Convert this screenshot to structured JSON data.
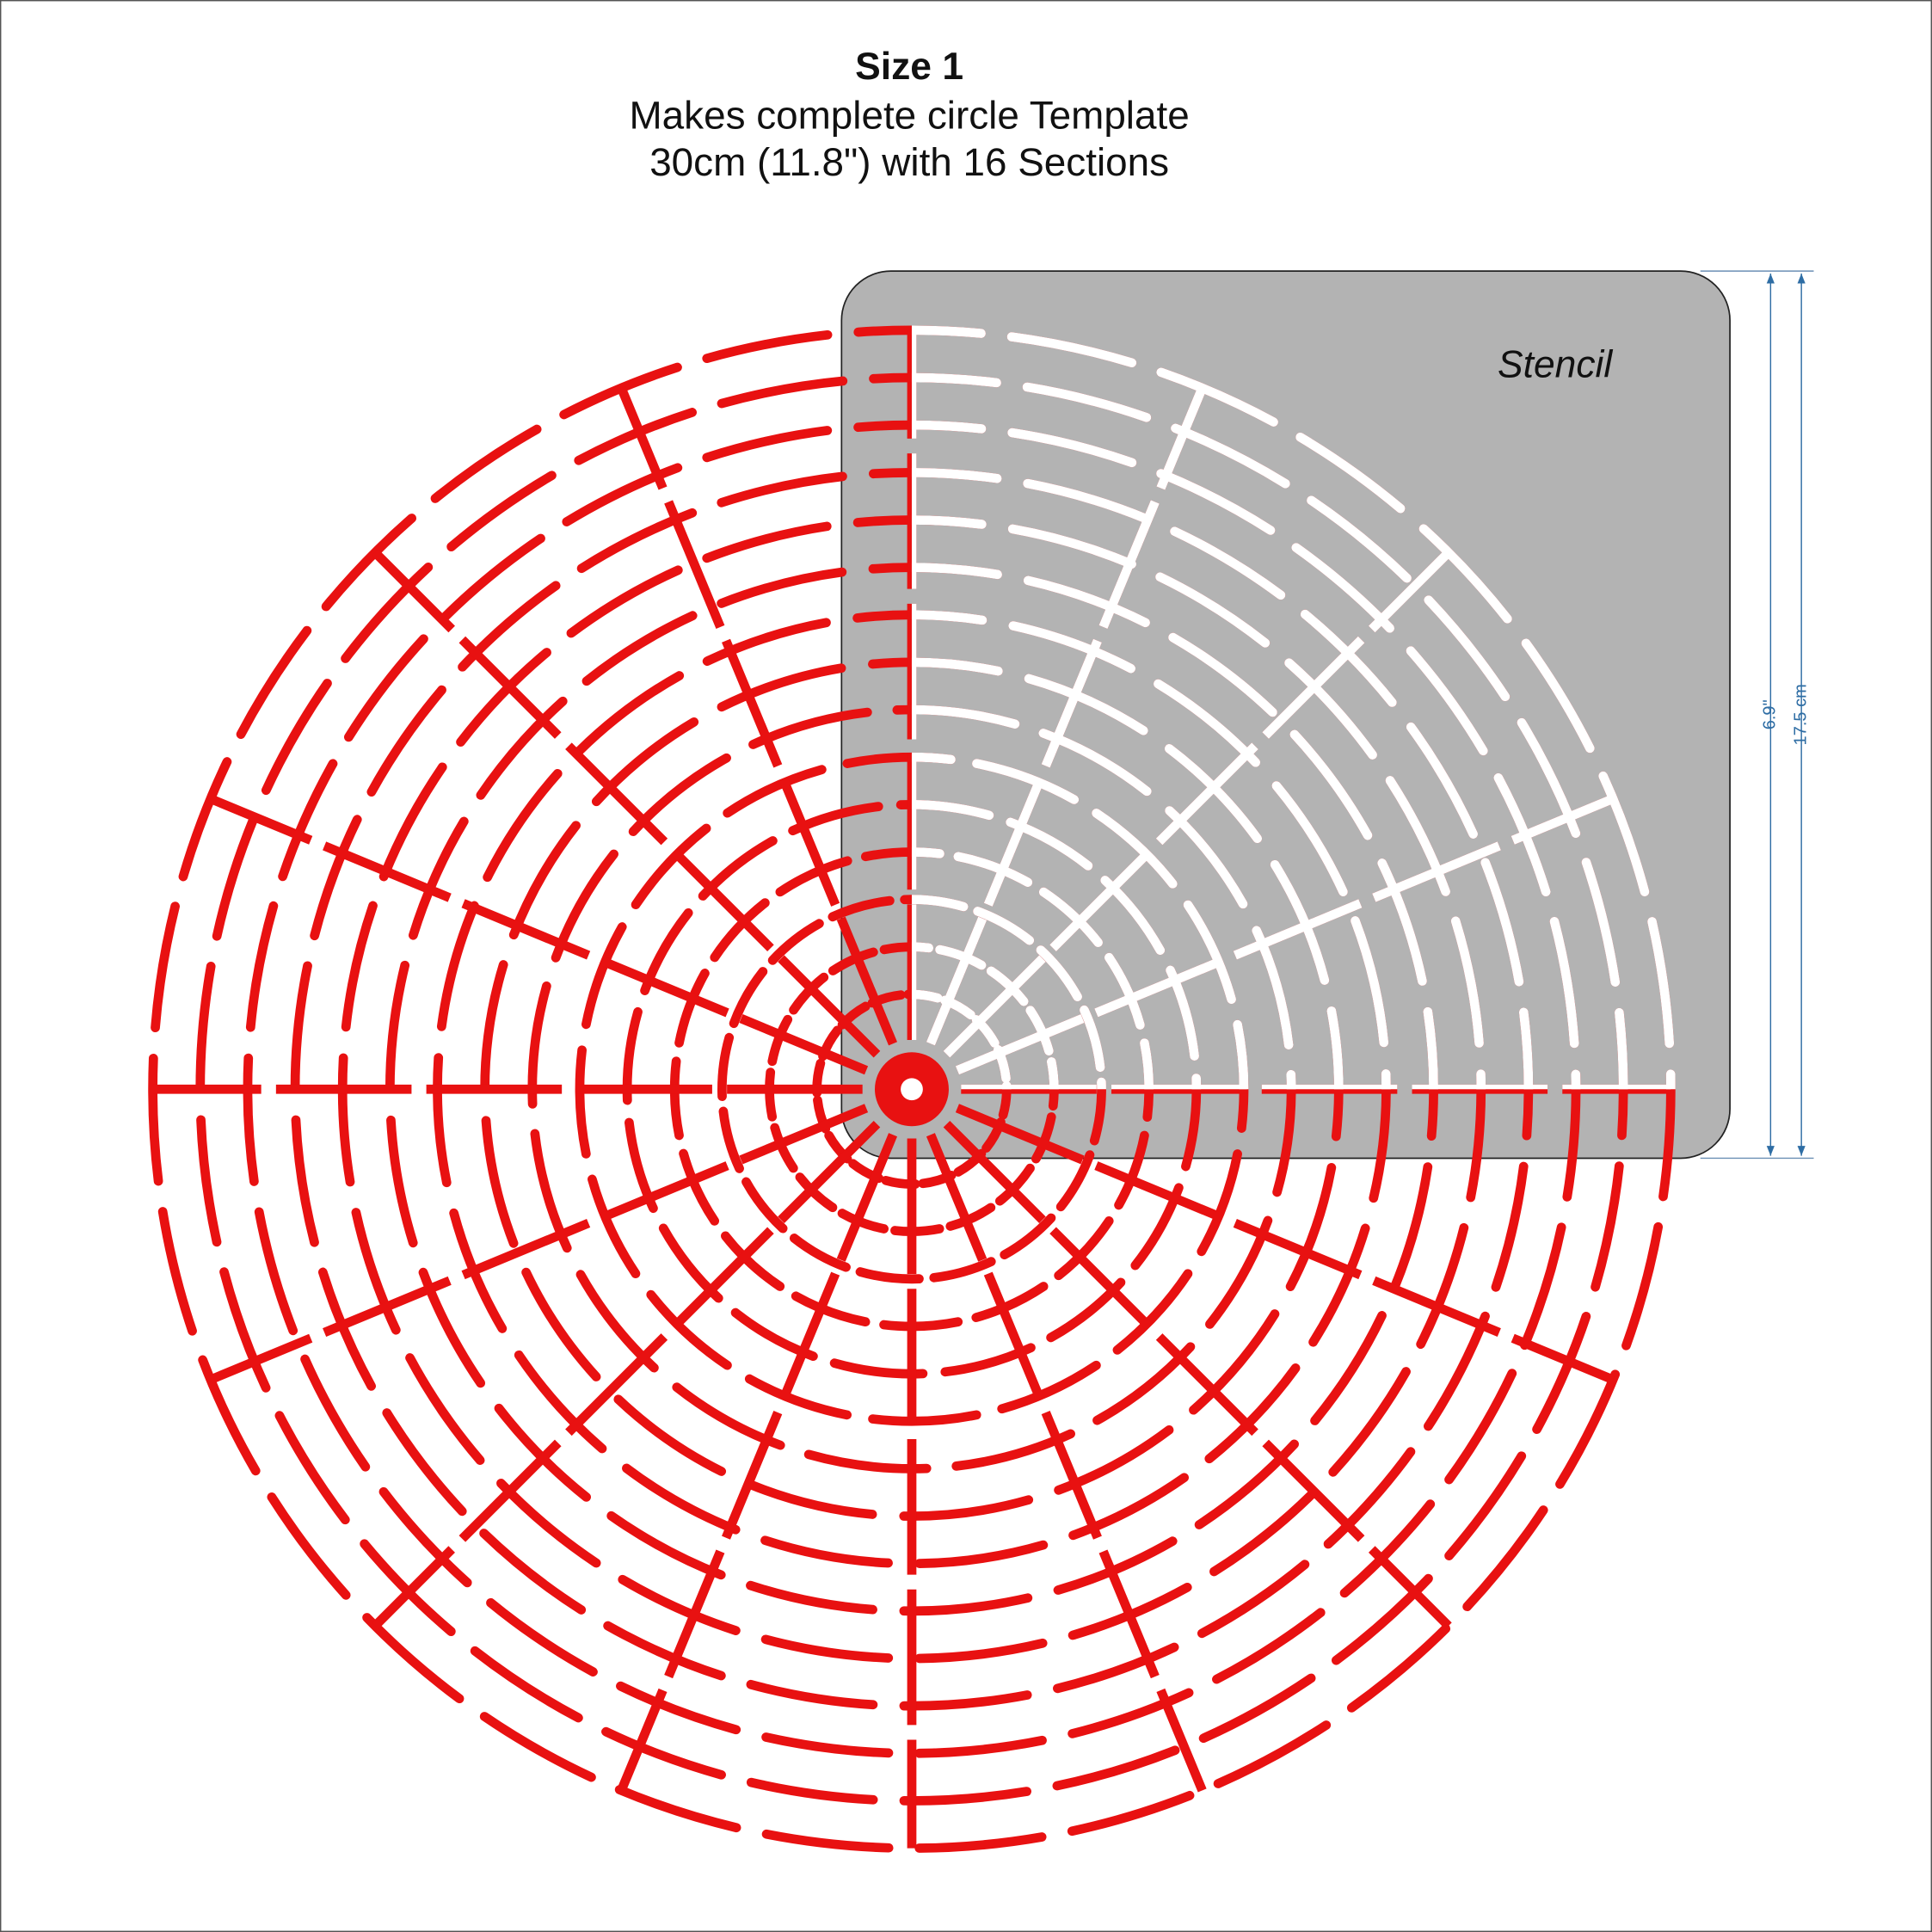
{
  "header": {
    "title": "Size 1",
    "line1": "Makes complete circle Template",
    "line2": "30cm (11.8\") with 16 Sections"
  },
  "stencil": {
    "label": "Stencil"
  },
  "dimensions": {
    "inches": "6.9\"",
    "cm": "17.5 cm"
  }
}
